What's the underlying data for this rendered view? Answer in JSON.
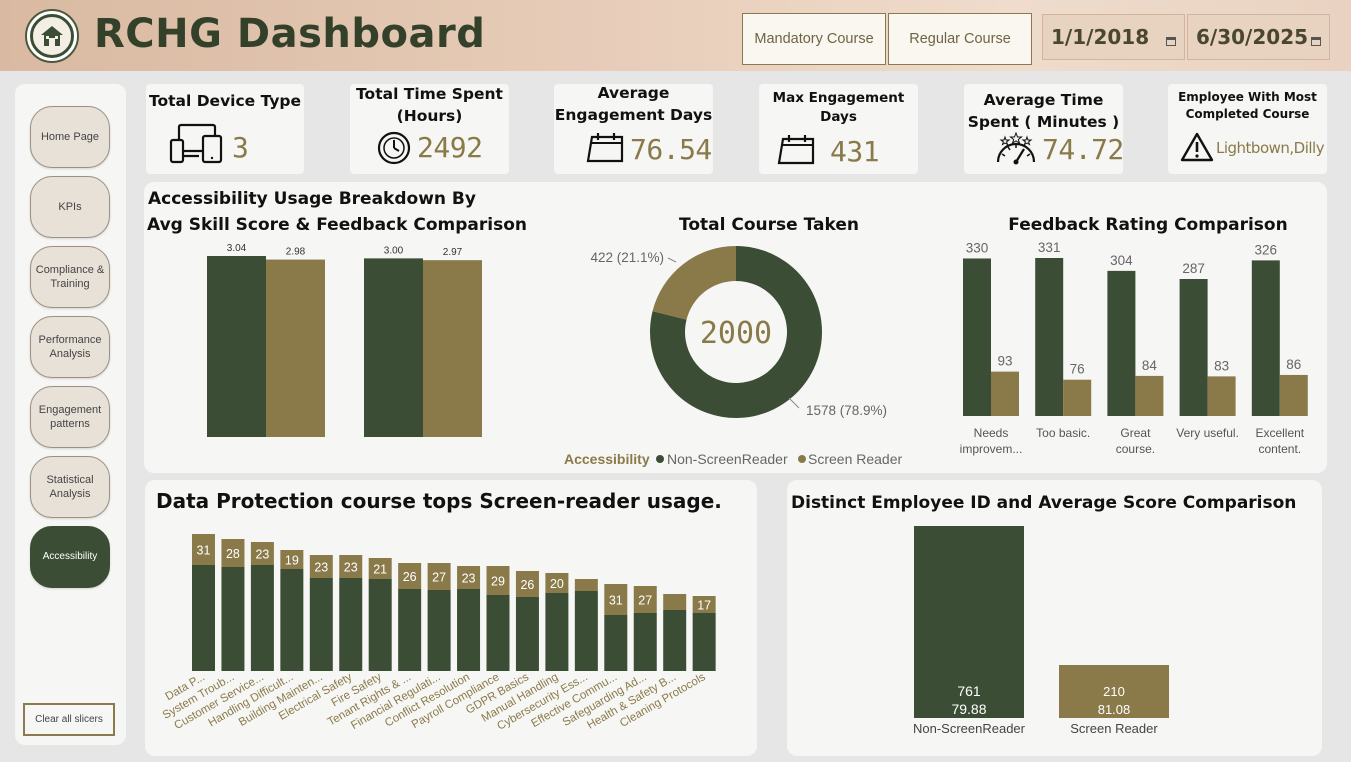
{
  "header": {
    "title": "RCHG Dashboard",
    "logo_icon": "house-logo-icon",
    "buttons": {
      "mandatory": "Mandatory Course",
      "regular": "Regular Course"
    },
    "date_start": "1/1/2018",
    "date_end": "6/30/2025"
  },
  "sidebar": {
    "items": [
      {
        "label": "Home Page"
      },
      {
        "label": "KPIs"
      },
      {
        "label": "Compliance & Training"
      },
      {
        "label": "Performance Analysis"
      },
      {
        "label": "Engagement patterns"
      },
      {
        "label": "Statistical Analysis"
      },
      {
        "label": "Accessibility",
        "active": true
      }
    ],
    "clear_label": "Clear all slicers"
  },
  "kpis": [
    {
      "title": "Total Device Type",
      "value": "3",
      "icon": "devices-icon"
    },
    {
      "title": "Total Time Spent (Hours)",
      "value": "2492",
      "icon": "clock-icon"
    },
    {
      "title": "Average Engagement Days",
      "value": "76.54",
      "icon": "calendar-icon"
    },
    {
      "title": "Max Engagement Days",
      "value": "431",
      "icon": "calendar-icon"
    },
    {
      "title": "Average Time Spent ( Minutes )",
      "value": "74.72",
      "icon": "speedometer-icon"
    },
    {
      "title": "Employee With Most Completed Course",
      "value": "Lightbown,Dilly",
      "icon": "warning-icon"
    }
  ],
  "colors": {
    "green": "#3c4d35",
    "gold": "#8a7a4a"
  },
  "panel1": {
    "title": "Accessibility Usage Breakdown By",
    "legend": {
      "title": "Accessibility",
      "items": [
        "Non-ScreenReader",
        "Screen Reader"
      ]
    }
  },
  "chart_data": [
    {
      "type": "bar",
      "title": "Avg Skill Score & Feedback Comparison",
      "categories": [
        "Avg Skill Score",
        "Feedback"
      ],
      "series": [
        {
          "name": "Non-ScreenReader",
          "values": [
            3.04,
            3.0
          ],
          "labels": [
            "3.04",
            "3.00"
          ]
        },
        {
          "name": "Screen Reader",
          "values": [
            2.98,
            2.97
          ],
          "labels": [
            "2.98",
            "2.97"
          ]
        }
      ]
    },
    {
      "type": "pie",
      "title": "Total Course Taken",
      "center_label": "2000",
      "slices": [
        {
          "name": "Non-ScreenReader",
          "value": 1578,
          "label": "1578 (78.9%)"
        },
        {
          "name": "Screen Reader",
          "value": 422,
          "label": "422 (21.1%)"
        }
      ]
    },
    {
      "type": "bar",
      "title": "Feedback Rating Comparison",
      "categories": [
        "Needs improvem...",
        "Too basic.",
        "Great course.",
        "Very useful.",
        "Excellent content."
      ],
      "series": [
        {
          "name": "Non-ScreenReader",
          "values": [
            330,
            331,
            304,
            287,
            326
          ]
        },
        {
          "name": "Screen Reader",
          "values": [
            93,
            76,
            84,
            83,
            86
          ]
        }
      ]
    },
    {
      "type": "bar",
      "title": "Data Protection course tops Screen-reader usage.",
      "stacked": true,
      "categories": [
        "Data P...",
        "System Troub...",
        "Customer Service...",
        "Handling Difficult...",
        "Building Mainten...",
        "Electrical Safety",
        "Fire Safety",
        "Tenant Rights & ...",
        "Financial Regulati...",
        "Conflict Resolution",
        "Payroll Compliance",
        "GDPR Basics",
        "Manual Handling",
        "Cybersecurity Ess...",
        "Effective Commu...",
        "Safeguarding Ad...",
        "Health & Safety B...",
        "Cleaning Protocols"
      ],
      "series": [
        {
          "name": "Non-ScreenReader",
          "values": [
            106,
            104,
            106,
            102,
            93,
            93,
            92,
            82,
            81,
            82,
            76,
            74,
            78,
            80,
            56,
            58,
            61,
            58
          ]
        },
        {
          "name": "Screen Reader",
          "values": [
            31,
            28,
            23,
            19,
            23,
            23,
            21,
            26,
            27,
            23,
            29,
            26,
            20,
            12,
            31,
            27,
            16,
            17
          ],
          "labels": [
            "31",
            "28",
            "23",
            "19",
            "23",
            "23",
            "21",
            "26",
            "27",
            "23",
            "29",
            "26",
            "20",
            "",
            "31",
            "27",
            "",
            "17"
          ]
        }
      ]
    },
    {
      "type": "bar",
      "title": "Distinct Employee ID and Average Score Comparison",
      "categories": [
        "Non-ScreenReader",
        "Screen Reader"
      ],
      "series": [
        {
          "name": "Distinct Employee ID",
          "values": [
            761,
            210
          ]
        },
        {
          "name": "Average Score",
          "values": [
            79.88,
            81.08
          ]
        }
      ]
    }
  ]
}
